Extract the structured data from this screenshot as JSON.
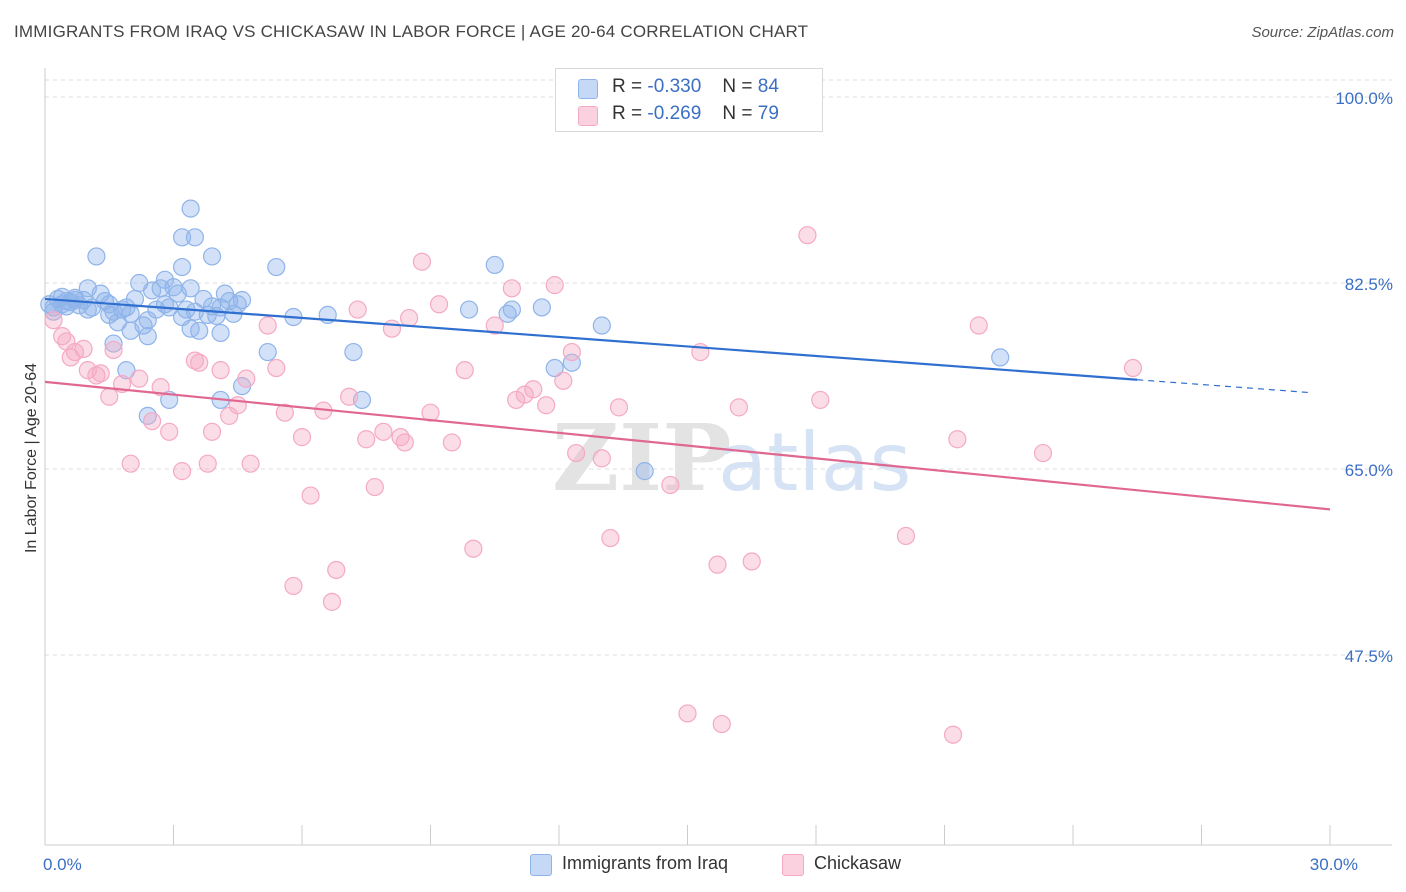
{
  "header": {
    "title": "IMMIGRANTS FROM IRAQ VS CHICKASAW IN LABOR FORCE | AGE 20-64 CORRELATION CHART",
    "source": "Source: ZipAtlas.com"
  },
  "legend": {
    "r_label": "R =",
    "n_label": "N =",
    "rows": [
      {
        "r": "-0.330",
        "n": "84"
      },
      {
        "r": "-0.269",
        "n": "79"
      }
    ]
  },
  "watermark": {
    "zip": "ZIP",
    "atlas": "atlas"
  },
  "chart_data": {
    "type": "scatter",
    "title": "IMMIGRANTS FROM IRAQ VS CHICKASAW IN LABOR FORCE | AGE 20-64 CORRELATION CHART",
    "xlabel": "",
    "ylabel": "In Labor Force | Age 20-64",
    "xlim": [
      0,
      30
    ],
    "ylim": [
      30,
      102
    ],
    "x_ticks": [
      {
        "value": 0,
        "label": "0.0%"
      },
      {
        "value": 30,
        "label": "30.0%"
      }
    ],
    "y_ticks": [
      {
        "value": 100,
        "label": "100.0%"
      },
      {
        "value": 82.5,
        "label": "82.5%"
      },
      {
        "value": 65,
        "label": "65.0%"
      },
      {
        "value": 47.5,
        "label": "47.5%"
      }
    ],
    "grid": "horizontal dashed",
    "legend_position": "top-center",
    "series": [
      {
        "name": "Immigrants from Iraq",
        "color": "#8fb4ea",
        "line_color": "#2f6fd0",
        "trend": {
          "x0": 0,
          "y0": 81.0,
          "x1": 25.5,
          "y1": 73.4,
          "dash_to_x": 29.5,
          "dash_to_y": 72.2
        },
        "points": [
          [
            0.1,
            80.5
          ],
          [
            0.2,
            80.2
          ],
          [
            0.2,
            79.8
          ],
          [
            0.3,
            81.0
          ],
          [
            0.4,
            80.5
          ],
          [
            0.4,
            81.2
          ],
          [
            0.5,
            80.8
          ],
          [
            0.5,
            80.3
          ],
          [
            0.6,
            80.7
          ],
          [
            0.7,
            81.1
          ],
          [
            0.7,
            80.9
          ],
          [
            0.8,
            80.4
          ],
          [
            1.0,
            82.0
          ],
          [
            1.1,
            80.2
          ],
          [
            1.2,
            85.0
          ],
          [
            1.3,
            81.5
          ],
          [
            1.4,
            80.8
          ],
          [
            1.5,
            79.5
          ],
          [
            1.6,
            79.8
          ],
          [
            1.7,
            78.8
          ],
          [
            1.8,
            80.0
          ],
          [
            1.9,
            80.2
          ],
          [
            2.0,
            79.6
          ],
          [
            2.1,
            81.0
          ],
          [
            2.2,
            82.5
          ],
          [
            2.3,
            78.5
          ],
          [
            2.4,
            79.0
          ],
          [
            2.5,
            81.8
          ],
          [
            2.6,
            80.0
          ],
          [
            2.7,
            82.0
          ],
          [
            2.8,
            82.8
          ],
          [
            2.9,
            80.2
          ],
          [
            3.0,
            82.1
          ],
          [
            3.1,
            81.5
          ],
          [
            3.2,
            79.3
          ],
          [
            3.3,
            80.0
          ],
          [
            3.4,
            82.0
          ],
          [
            3.5,
            79.8
          ],
          [
            3.6,
            78.0
          ],
          [
            3.7,
            81.0
          ],
          [
            3.8,
            79.5
          ],
          [
            3.9,
            80.3
          ],
          [
            4.0,
            79.4
          ],
          [
            4.1,
            80.2
          ],
          [
            4.2,
            81.5
          ],
          [
            4.3,
            80.8
          ],
          [
            4.4,
            79.6
          ],
          [
            4.5,
            80.5
          ],
          [
            4.6,
            80.9
          ],
          [
            3.2,
            86.8
          ],
          [
            3.5,
            86.8
          ],
          [
            3.4,
            89.5
          ],
          [
            3.9,
            85.0
          ],
          [
            3.2,
            84.0
          ],
          [
            5.4,
            84.0
          ],
          [
            1.6,
            76.8
          ],
          [
            2.4,
            77.5
          ],
          [
            1.9,
            74.3
          ],
          [
            3.4,
            78.2
          ],
          [
            4.1,
            77.8
          ],
          [
            5.2,
            76.0
          ],
          [
            4.6,
            72.8
          ],
          [
            4.1,
            71.5
          ],
          [
            2.4,
            70.0
          ],
          [
            2.9,
            71.5
          ],
          [
            5.8,
            79.3
          ],
          [
            6.6,
            79.5
          ],
          [
            7.2,
            76.0
          ],
          [
            7.4,
            71.5
          ],
          [
            9.9,
            80.0
          ],
          [
            10.5,
            84.2
          ],
          [
            10.8,
            79.6
          ],
          [
            10.9,
            80.0
          ],
          [
            11.6,
            80.2
          ],
          [
            11.9,
            74.5
          ],
          [
            12.3,
            75.0
          ],
          [
            13.0,
            78.5
          ],
          [
            14.0,
            64.8
          ],
          [
            22.3,
            75.5
          ],
          [
            1.0,
            80.0
          ],
          [
            1.5,
            80.5
          ],
          [
            2.0,
            78.0
          ],
          [
            2.8,
            80.5
          ],
          [
            0.9,
            80.9
          ]
        ]
      },
      {
        "name": "Chickasaw",
        "color": "#f5a9c4",
        "line_color": "#e06890",
        "trend": {
          "x0": 0,
          "y0": 73.2,
          "x1": 30,
          "y1": 61.2
        },
        "points": [
          [
            0.2,
            79.0
          ],
          [
            0.4,
            77.5
          ],
          [
            0.5,
            77.0
          ],
          [
            0.6,
            75.5
          ],
          [
            0.7,
            76.0
          ],
          [
            0.9,
            76.3
          ],
          [
            1.0,
            74.3
          ],
          [
            1.2,
            73.8
          ],
          [
            1.3,
            74.0
          ],
          [
            1.5,
            71.8
          ],
          [
            1.6,
            76.2
          ],
          [
            1.8,
            73.0
          ],
          [
            2.0,
            65.5
          ],
          [
            2.2,
            73.5
          ],
          [
            2.5,
            69.5
          ],
          [
            2.7,
            72.7
          ],
          [
            2.9,
            68.5
          ],
          [
            3.2,
            64.8
          ],
          [
            3.5,
            75.2
          ],
          [
            3.6,
            75.0
          ],
          [
            3.8,
            65.5
          ],
          [
            3.9,
            68.5
          ],
          [
            4.1,
            74.3
          ],
          [
            4.3,
            70.0
          ],
          [
            4.5,
            71.0
          ],
          [
            4.7,
            73.5
          ],
          [
            4.8,
            65.5
          ],
          [
            5.2,
            78.5
          ],
          [
            5.4,
            74.5
          ],
          [
            5.6,
            70.3
          ],
          [
            5.8,
            54.0
          ],
          [
            6.0,
            68.0
          ],
          [
            6.2,
            62.5
          ],
          [
            6.5,
            70.5
          ],
          [
            6.7,
            52.5
          ],
          [
            6.8,
            55.5
          ],
          [
            7.1,
            71.8
          ],
          [
            7.3,
            80.0
          ],
          [
            7.5,
            67.8
          ],
          [
            7.7,
            63.3
          ],
          [
            7.9,
            68.5
          ],
          [
            8.1,
            78.2
          ],
          [
            8.3,
            68.0
          ],
          [
            8.4,
            67.5
          ],
          [
            8.5,
            79.2
          ],
          [
            8.8,
            84.5
          ],
          [
            9.0,
            70.3
          ],
          [
            9.2,
            80.5
          ],
          [
            9.5,
            67.5
          ],
          [
            9.8,
            74.3
          ],
          [
            10.0,
            57.5
          ],
          [
            10.5,
            78.5
          ],
          [
            10.9,
            82.0
          ],
          [
            11.0,
            71.5
          ],
          [
            11.2,
            72.0
          ],
          [
            11.4,
            72.5
          ],
          [
            11.7,
            71.0
          ],
          [
            11.9,
            82.3
          ],
          [
            12.1,
            73.3
          ],
          [
            12.3,
            76.0
          ],
          [
            12.4,
            66.5
          ],
          [
            13.0,
            66.0
          ],
          [
            13.2,
            58.5
          ],
          [
            13.4,
            70.8
          ],
          [
            14.6,
            63.5
          ],
          [
            15.0,
            42.0
          ],
          [
            15.3,
            76.0
          ],
          [
            15.7,
            56.0
          ],
          [
            15.8,
            41.0
          ],
          [
            16.2,
            70.8
          ],
          [
            16.5,
            56.3
          ],
          [
            17.8,
            87.0
          ],
          [
            18.1,
            71.5
          ],
          [
            20.1,
            58.7
          ],
          [
            21.2,
            40.0
          ],
          [
            21.3,
            67.8
          ],
          [
            21.8,
            78.5
          ],
          [
            23.3,
            66.5
          ],
          [
            25.4,
            74.5
          ]
        ]
      }
    ]
  },
  "bottom_legend": [
    {
      "label": "Immigrants from Iraq"
    },
    {
      "label": "Chickasaw"
    }
  ]
}
